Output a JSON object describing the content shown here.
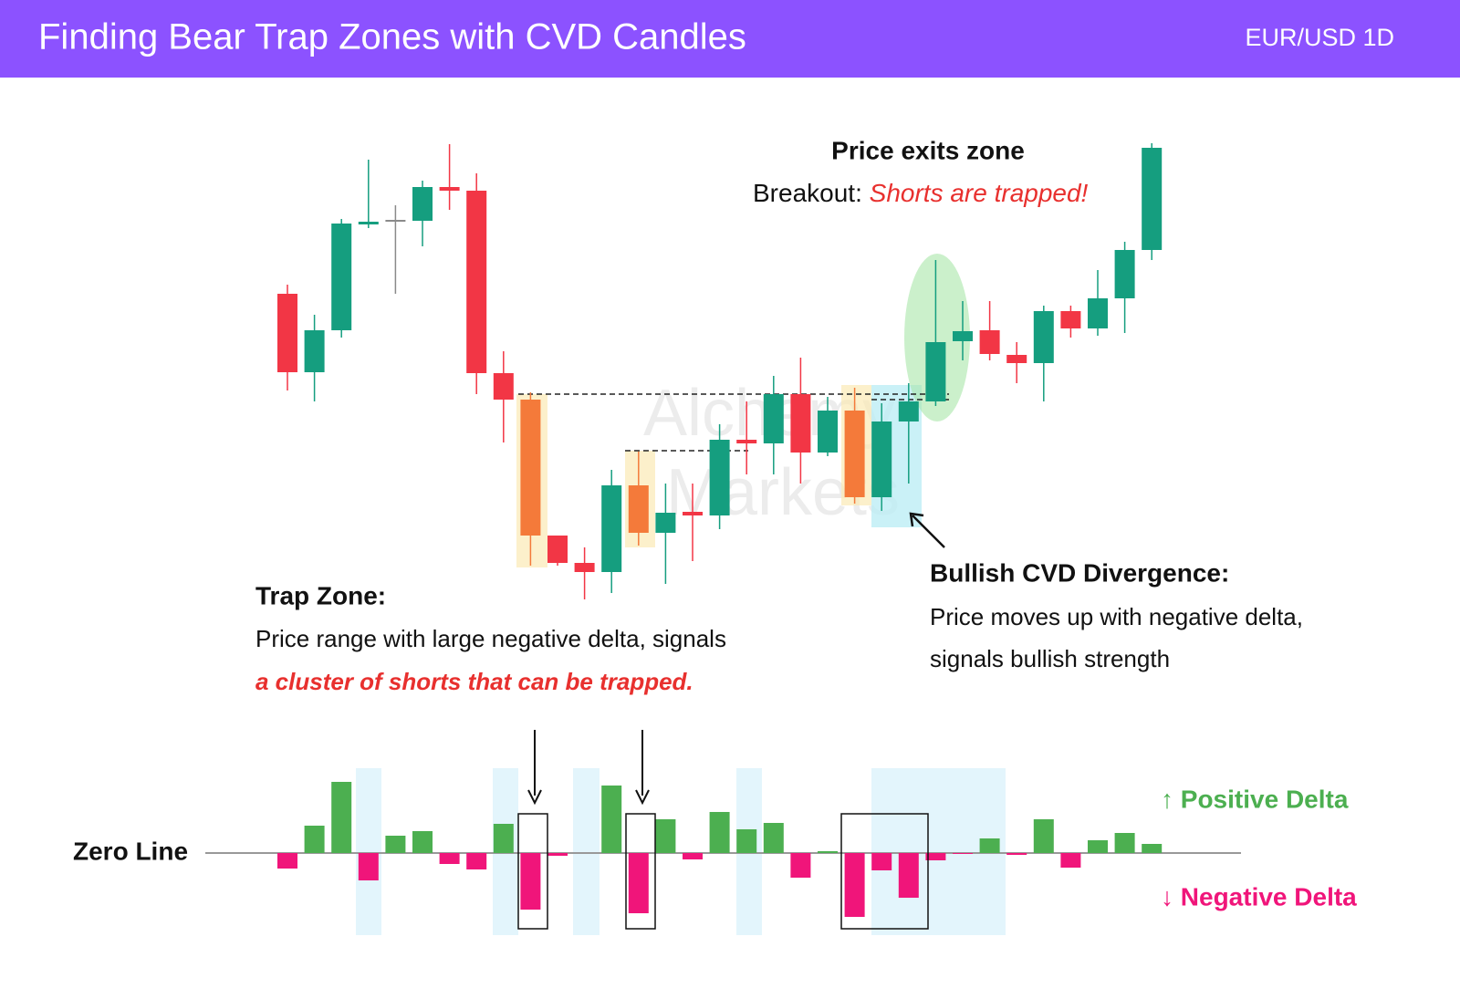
{
  "header": {
    "title": "Finding Bear Trap Zones with CVD Candles",
    "subtitle": "EUR/USD 1D"
  },
  "chart_data": [
    {
      "type": "candlestick",
      "watermark": [
        "Alchemy",
        "Markets"
      ],
      "ylim": [
        0,
        560
      ],
      "open": [
        378,
        292,
        338,
        454,
        457,
        458,
        495,
        491,
        291,
        262,
        113,
        83,
        73,
        168,
        116,
        139,
        135,
        218,
        214,
        268,
        204,
        250,
        155,
        238,
        260,
        326,
        338,
        311,
        302,
        359,
        340,
        373,
        426
      ],
      "close": [
        292,
        338,
        455,
        457,
        459,
        495,
        491,
        291,
        262,
        113,
        83,
        73,
        168,
        116,
        138,
        135,
        218,
        214,
        268,
        204,
        250,
        155,
        238,
        260,
        325,
        337,
        312,
        302,
        359,
        340,
        373,
        426,
        538
      ],
      "high": [
        388,
        355,
        460,
        525,
        475,
        502,
        542,
        510,
        315,
        270,
        113,
        100,
        185,
        205,
        170,
        170,
        235,
        260,
        288,
        308,
        265,
        275,
        258,
        280,
        415,
        370,
        370,
        325,
        365,
        365,
        404,
        435,
        543
      ],
      "low": [
        272,
        260,
        330,
        450,
        378,
        430,
        470,
        268,
        215,
        80,
        80,
        43,
        50,
        102,
        60,
        85,
        120,
        180,
        180,
        170,
        200,
        148,
        140,
        170,
        255,
        305,
        305,
        280,
        260,
        330,
        332,
        335,
        415
      ],
      "colors": [
        "#f23645",
        "#159e7f",
        "#159e7f",
        "#159e7f",
        "#8a8a8a",
        "#159e7f",
        "#f23645",
        "#f23645",
        "#f23645",
        "#f47a3a",
        "#f23645",
        "#f23645",
        "#159e7f",
        "#f47a3a",
        "#159e7f",
        "#f23645",
        "#159e7f",
        "#f23645",
        "#159e7f",
        "#f23645",
        "#159e7f",
        "#f47a3a",
        "#159e7f",
        "#159e7f",
        "#159e7f",
        "#159e7f",
        "#f23645",
        "#f23645",
        "#159e7f",
        "#f23645",
        "#159e7f",
        "#159e7f",
        "#159e7f"
      ],
      "annotations": {
        "exit_title": "Price exits zone",
        "exit_prefix": "Breakout: ",
        "exit_emphasis": "Shorts are trapped!",
        "trap_title": "Trap Zone:",
        "trap_line": "Price range with large negative delta, signals",
        "trap_emphasis": "a cluster of shorts that can be trapped.",
        "div_title": "Bullish CVD Divergence:",
        "div_line1": "Price moves up with negative delta,",
        "div_line2": "signals bullish strength"
      }
    },
    {
      "type": "bar",
      "zero_label": "Zero Line",
      "positive_label": "↑ Positive Delta",
      "negative_label": "↓ Negative Delta",
      "positive_color": "#4caf50",
      "negative_color": "#f0157a",
      "ylim": [
        -90,
        90
      ],
      "values": [
        -17,
        30,
        78,
        -30,
        19,
        24,
        -12,
        -18,
        32,
        -62,
        -3,
        0,
        74,
        -66,
        37,
        -7,
        45,
        26,
        33,
        -27,
        2,
        -70,
        -19,
        -49,
        -8,
        -1,
        16,
        -2,
        37,
        -16,
        14,
        22,
        10
      ]
    }
  ]
}
